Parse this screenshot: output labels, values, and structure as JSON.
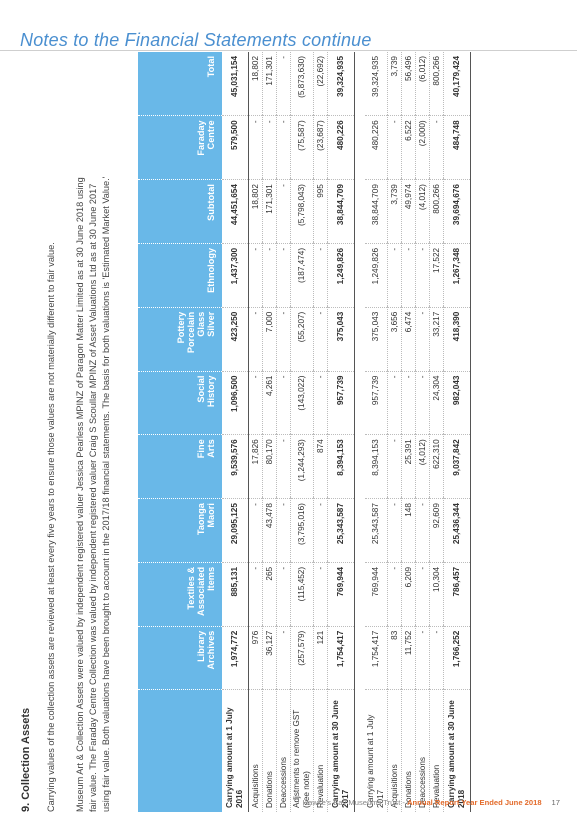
{
  "header": {
    "title": "Notes to the Financial Statements continue"
  },
  "section": {
    "title": "9. Collection Assets",
    "intro": "Carrying values of the collection assets are reviewed at least every five years to ensure those values are not materially different to fair value.",
    "paragraph": [
      "Museum Art & Collection Assets were valued by independent registered valuer Jessica Pearless MPINZ of Paragon Matter Limited as at 30 June 2018 using",
      "fair value. The Faraday Centre Collection was valued by independent registered valuer Craig S Scoullar MPINZ of Asset Valuations Ltd as at 30 June 2017",
      "using fair value. Both valuations have been brought to account in the 2017/18 financial statements. The basis for both valuations is 'Estimated Market Value.'"
    ]
  },
  "table": {
    "columns": [
      [
        "Library",
        "Archives"
      ],
      [
        "Textiles &",
        "Associated",
        "Items"
      ],
      [
        "Taonga",
        "Maori"
      ],
      [
        "Fine",
        "Arts"
      ],
      [
        "Social",
        "History"
      ],
      [
        "Pottery",
        "Porcelain",
        "Glass",
        "Silver"
      ],
      [
        "Ethnology"
      ],
      [
        "Subtotal"
      ],
      [
        "Faraday",
        "Centre"
      ],
      [
        "Total"
      ]
    ],
    "rows": [
      {
        "label": "Carrying amount at 1 July 2016",
        "type": "total",
        "values": [
          "1,974,772",
          "885,131",
          "29,095,125",
          "9,539,576",
          "1,096,500",
          "423,250",
          "1,437,300",
          "44,451,654",
          "579,500",
          "45,031,154"
        ]
      },
      {
        "label": "Acquisitions",
        "values": [
          "976",
          "-",
          "-",
          "17,826",
          "-",
          "-",
          "-",
          "18,802",
          "-",
          "18,802"
        ]
      },
      {
        "label": "Donations",
        "values": [
          "36,127",
          "265",
          "43,478",
          "80,170",
          "4,261",
          "7,000",
          "-",
          "171,301",
          "-",
          "171,301"
        ]
      },
      {
        "label": "Deaccessions",
        "values": [
          "-",
          "-",
          "-",
          "-",
          "-",
          "-",
          "-",
          "-",
          "-",
          "-"
        ]
      },
      {
        "label": "Adjstments to remove GST (see note)",
        "type": "tall",
        "values": [
          "(257,579)",
          "(115,452)",
          "(3,795,016)",
          "(1,244,293)",
          "(143,022)",
          "(55,207)",
          "(187,474)",
          "(5,798,043)",
          "(75,587)",
          "(5,873,630)"
        ]
      },
      {
        "label": "Revaluation",
        "values": [
          "121",
          "-",
          "-",
          "874",
          "-",
          "-",
          "-",
          "995",
          "(23,687)",
          "(22,692)"
        ]
      },
      {
        "label": "Carrying amount at 30 June 2017",
        "type": "total",
        "values": [
          "1,754,417",
          "769,944",
          "25,343,587",
          "8,394,153",
          "957,739",
          "375,043",
          "1,249,826",
          "38,844,709",
          "480,226",
          "39,324,935"
        ]
      },
      {
        "type": "spacer"
      },
      {
        "label": "Carrying amount at 1 July 2017",
        "type": "tall",
        "values": [
          "1,754,417",
          "769,944",
          "25,343,587",
          "8,394,153",
          "957,739",
          "375,043",
          "1,249,826",
          "38,844,709",
          "480,226",
          "39,324,935"
        ]
      },
      {
        "label": "Acquisitions",
        "values": [
          "83",
          "-",
          "-",
          "-",
          "-",
          "3,656",
          "-",
          "3,739",
          "-",
          "3,739"
        ]
      },
      {
        "label": "Donations",
        "values": [
          "11,752",
          "6,209",
          "148",
          "25,391",
          "-",
          "6,474",
          "-",
          "49,974",
          "6,522",
          "56,496"
        ]
      },
      {
        "label": "Deaccessions",
        "values": [
          "-",
          "-",
          "-",
          "(4,012)",
          "-",
          "-",
          "-",
          "(4,012)",
          "(2,000)",
          "(6,012)"
        ]
      },
      {
        "label": "Revaluation",
        "values": [
          "-",
          "10,304",
          "92,609",
          "622,310",
          "24,304",
          "33,217",
          "17,522",
          "800,266",
          "-",
          "800,266"
        ]
      },
      {
        "label": "Carrying amount at 30 June 2018",
        "type": "total",
        "values": [
          "1,766,252",
          "786,457",
          "25,436,344",
          "9,037,842",
          "982,043",
          "418,390",
          "1,267,348",
          "39,694,676",
          "484,748",
          "40,179,424"
        ]
      }
    ]
  },
  "footer": {
    "org": "Hawke's Bay Museums Trust - ",
    "report": "Annual Report Year Ended June 2018",
    "page": "17"
  }
}
